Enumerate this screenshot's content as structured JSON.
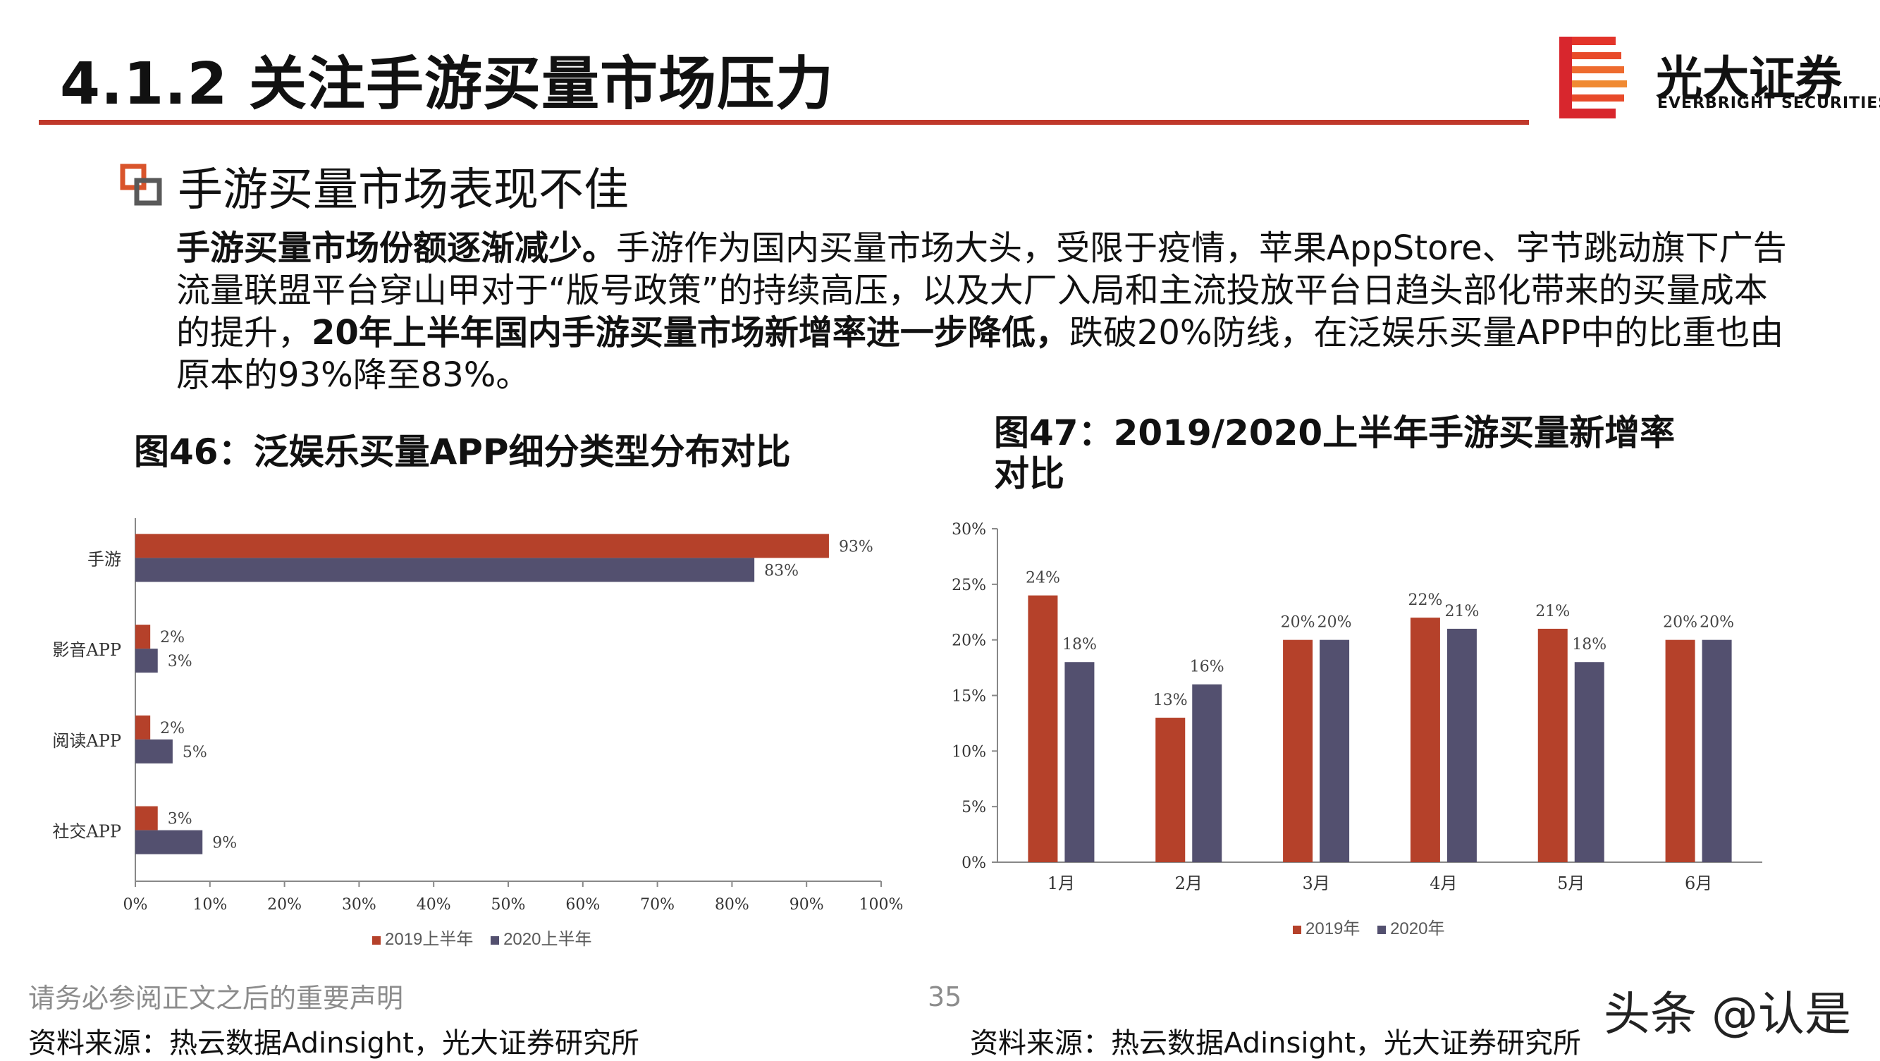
{
  "header": {
    "title": "4.1.2 关注手游买量市场压力",
    "logo_name": "光大证券",
    "logo_sub": "EVERBRIGHT SECURITIES"
  },
  "section": {
    "heading": "手游买量市场表现不佳",
    "para_bold_1": "手游买量市场份额逐渐减少。",
    "para_text_1": "手游作为国内买量市场大头，受限于疫情，苹果AppStore、字节跳动旗下广告流量联盟平台穿山甲对于“版号政策”的持续高压，以及大厂入局和主流投放平台日趋头部化带来的买量成本的提升，",
    "para_bold_2": "20年上半年国内手游买量市场新增率进一步降低，",
    "para_text_2": "跌破20%防线，在泛娱乐买量APP中的比重也由原本的93%降至83%。"
  },
  "figures": {
    "fig46_title": "图46：泛娱乐买量APP细分类型分布对比",
    "fig47_title": "图47：2019/2020上半年手游买量新增率对比"
  },
  "chart_data": [
    {
      "type": "bar",
      "orientation": "horizontal",
      "categories": [
        "手游",
        "影音APP",
        "阅读APP",
        "社交APP"
      ],
      "series": [
        {
          "name": "2019上半年",
          "values": [
            93,
            2,
            2,
            3
          ],
          "labels": [
            "93%",
            "2%",
            "2%",
            "3%"
          ],
          "color": "#b5412a"
        },
        {
          "name": "2020上半年",
          "values": [
            83,
            3,
            5,
            9
          ],
          "labels": [
            "83%",
            "3%",
            "5%",
            "9%"
          ],
          "color": "#53506f"
        }
      ],
      "xlim": [
        0,
        100
      ],
      "x_ticks": [
        "0%",
        "10%",
        "20%",
        "30%",
        "40%",
        "50%",
        "60%",
        "70%",
        "80%",
        "90%",
        "100%"
      ],
      "legend": "bottom",
      "grid": false
    },
    {
      "type": "bar",
      "orientation": "vertical",
      "categories": [
        "1月",
        "2月",
        "3月",
        "4月",
        "5月",
        "6月"
      ],
      "series": [
        {
          "name": "2019年",
          "values": [
            24,
            13,
            20,
            22,
            21,
            20
          ],
          "labels": [
            "24%",
            "13%",
            "20%",
            "22%",
            "21%",
            "20%"
          ],
          "color": "#b5412a"
        },
        {
          "name": "2020年",
          "values": [
            18,
            16,
            20,
            21,
            18,
            20
          ],
          "labels": [
            "18%",
            "16%",
            "20%",
            "21%",
            "18%",
            "20%"
          ],
          "color": "#53506f"
        }
      ],
      "ylim": [
        0,
        30
      ],
      "y_ticks": [
        "0%",
        "5%",
        "10%",
        "15%",
        "20%",
        "25%",
        "30%"
      ],
      "legend": "bottom",
      "grid": false
    }
  ],
  "footer": {
    "disclaimer": "请务必参阅正文之后的重要声明",
    "page": "35",
    "source_left": "资料来源：热云数据Adinsight，光大证券研究所",
    "source_right": "资料来源：热云数据Adinsight，光大证券研究所",
    "watermark": "头条 @认是"
  },
  "colors": {
    "accent": "#c0392b",
    "series_2019": "#b5412a",
    "series_2020": "#53506f"
  }
}
